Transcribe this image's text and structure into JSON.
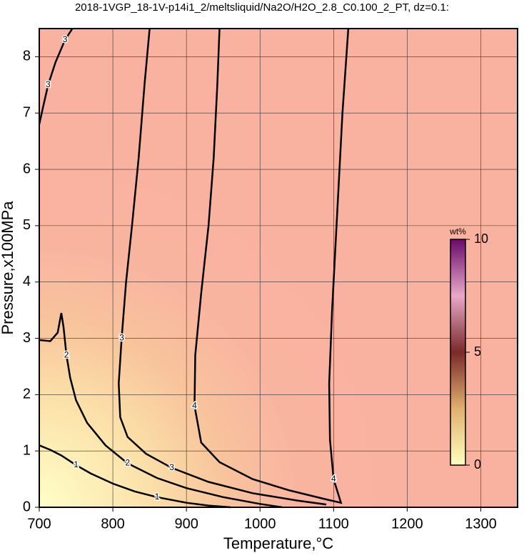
{
  "chart_data": {
    "type": "contour",
    "title": "2018-1VGP_18-1V-p14i1_2/meltsliquid/Na2O/H2O_2.8_C0.100_2_PT, dz=0.1:",
    "x_label": "Temperature,°C",
    "y_label": "Pressure,x100MPa",
    "xlim": [
      700,
      1350
    ],
    "ylim": [
      0,
      8.5
    ],
    "xticks": [
      700,
      800,
      900,
      1000,
      1100,
      1200,
      1300
    ],
    "yticks": [
      0,
      1,
      2,
      3,
      4,
      5,
      6,
      7,
      8
    ],
    "grid": true,
    "contours": [
      {
        "level": 1,
        "x": [
          700,
          715,
          730,
          750,
          770,
          800,
          830,
          860,
          900,
          930,
          960
        ],
        "y": [
          1.1,
          1.02,
          0.92,
          0.75,
          0.6,
          0.42,
          0.28,
          0.18,
          0.08,
          0.03,
          0
        ]
      },
      {
        "level": 2,
        "x": [
          700,
          715,
          725,
          730,
          733,
          737,
          742,
          750,
          765,
          790,
          820,
          860,
          900,
          950,
          1000,
          1030
        ],
        "y": [
          2.97,
          2.95,
          3.1,
          3.45,
          3.2,
          2.7,
          2.3,
          1.9,
          1.5,
          1.1,
          0.78,
          0.52,
          0.34,
          0.18,
          0.06,
          0
        ]
      },
      {
        "level": 3,
        "x": [
          850,
          843,
          835,
          826,
          818,
          812,
          808,
          810,
          820,
          845,
          880,
          930,
          990,
          1050,
          1090
        ],
        "y": [
          8.5,
          7.5,
          6.2,
          5,
          4,
          3,
          2.2,
          1.6,
          1.25,
          0.95,
          0.7,
          0.45,
          0.25,
          0.12,
          0.05
        ]
      },
      {
        "level": 3,
        "x": [
          700,
          705,
          712,
          722,
          735,
          745
        ],
        "y": [
          6.8,
          7.1,
          7.5,
          7.9,
          8.3,
          8.5
        ]
      },
      {
        "level": 4,
        "x": [
          945,
          942,
          937,
          930,
          920,
          912,
          911,
          920,
          945,
          990,
          1040,
          1090,
          1110,
          1100,
          1095,
          1094,
          1098,
          1104,
          1112,
          1120
        ],
        "y": [
          8.5,
          7.5,
          6.2,
          5,
          3.8,
          2.7,
          1.8,
          1.15,
          0.8,
          0.5,
          0.3,
          0.14,
          0.08,
          0.5,
          1.2,
          2.2,
          3.5,
          5,
          7,
          8.5
        ]
      }
    ],
    "colorbar": {
      "label": "wt%",
      "lim": [
        0,
        10
      ],
      "ticks": [
        0,
        5,
        10
      ],
      "colors": [
        "#ffffc0",
        "#e0b070",
        "#7a2a2a",
        "#e8a8c8",
        "#6a0a6a"
      ]
    }
  }
}
